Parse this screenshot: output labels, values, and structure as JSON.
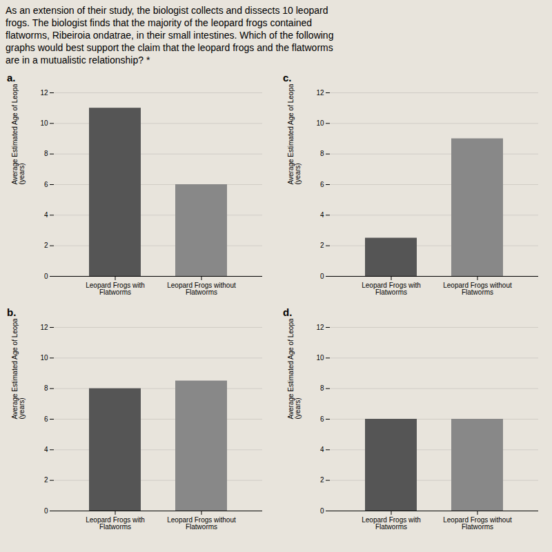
{
  "title": "As an extension of their study, the biologist collects and dissects 10 leopard\nfrogs. The biologist finds that the majority of the leopard frogs contained\nflatworms, Ribeiroia ondatrae, in their small intestines. Which of the following\ngraphs would best support the claim that the leopard frogs and the flatworms\nare in a mutualistic relationship? *",
  "chart_data": [
    {
      "type": "bar",
      "title": "a.",
      "categories": [
        "Leopard Frogs with\nFlatworms",
        "Leopard Frogs without\nFlatworms"
      ],
      "values": [
        11,
        6
      ],
      "colors": [
        "#555555",
        "#888888"
      ],
      "ylabel": "Average Estimated Age of Leopard Frogs\n(years)",
      "ylim": [
        0,
        12
      ],
      "yticks": [
        0,
        2,
        4,
        6,
        8,
        10,
        12
      ],
      "grid": true
    },
    {
      "type": "bar",
      "title": "c.",
      "categories": [
        "Leopard Frogs with\nFlatworms",
        "Leopard Frogs without\nFlatworms"
      ],
      "values": [
        2.5,
        9
      ],
      "colors": [
        "#555555",
        "#888888"
      ],
      "ylabel": "Average Estimated Age of Leopard Frogs\n(years)",
      "ylim": [
        0,
        12
      ],
      "yticks": [
        0,
        2,
        4,
        6,
        8,
        10,
        12
      ],
      "grid": true
    },
    {
      "type": "bar",
      "title": "b.",
      "categories": [
        "Leopard Frogs with\nFlatworms",
        "Leopard Frogs without\nFlatworms"
      ],
      "values": [
        8,
        8.5
      ],
      "colors": [
        "#555555",
        "#888888"
      ],
      "ylabel": "Average Estimated Age of Leopard Frogs\n(years)",
      "ylim": [
        0,
        12
      ],
      "yticks": [
        0,
        2,
        4,
        6,
        8,
        10,
        12
      ],
      "grid": true
    },
    {
      "type": "bar",
      "title": "d.",
      "categories": [
        "Leopard Frogs with\nFlatworms",
        "Leopard Frogs without\nFlatworms"
      ],
      "values": [
        6,
        6
      ],
      "colors": [
        "#555555",
        "#888888"
      ],
      "ylabel": "Average Estimated Age of Leopard Frogs\n(years)",
      "ylim": [
        0,
        12
      ],
      "yticks": [
        0,
        2,
        4,
        6,
        8,
        10,
        12
      ],
      "grid": true
    }
  ]
}
